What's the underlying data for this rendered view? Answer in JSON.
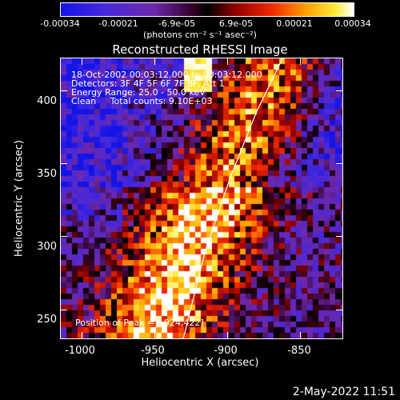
{
  "colorbar": {
    "ticks": [
      "-0.00034",
      "-0.00021",
      "-6.9e-05",
      "6.9e-05",
      "0.00021",
      "0.00034"
    ],
    "unit_label": "(photons cm⁻² s⁻¹ asec⁻²)",
    "range": [
      -0.00034,
      0.00034
    ]
  },
  "title": "Reconstructed RHESSI Image",
  "annotations": {
    "line1": "18-Oct-2002 00:03:12.000 to 00:03:12.000",
    "line2": "Detectors: 3F 4F 5F 6F 7F 8F, Att 1",
    "line3": "Energy Range: 25.0 - 50.0 keV",
    "line4": "Clean     Total counts: 9.10E+03",
    "peak": "Position of Peak = [-924,422]"
  },
  "timestamp": "2-May-2022 11:51",
  "chart_data": {
    "type": "heatmap",
    "title": "Reconstructed RHESSI Image",
    "xlabel": "Heliocentric X (arcsec)",
    "ylabel": "Heliocentric Y (arcsec)",
    "xlim": [
      -1014,
      -821
    ],
    "ylim": [
      230,
      422
    ],
    "xticks": [
      "-1000",
      "-950",
      "-900",
      "-850"
    ],
    "yticks": [
      "400",
      "350",
      "300",
      "250"
    ],
    "xtick_values": [
      -1000,
      -950,
      -900,
      -850
    ],
    "ytick_values": [
      400,
      350,
      300,
      250
    ],
    "colormap": "blue-purple-red-yellow-white",
    "value_range": [
      -0.00034,
      0.00034
    ],
    "peak_position": [
      -924,
      422
    ],
    "limb_curve": [
      [
        -930,
        230
      ],
      [
        -915,
        290
      ],
      [
        -898,
        340
      ],
      [
        -880,
        385
      ],
      [
        -862,
        422
      ]
    ]
  }
}
